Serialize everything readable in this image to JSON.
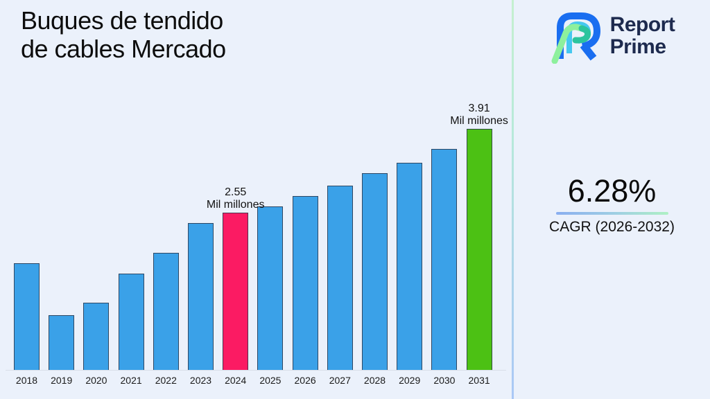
{
  "title": {
    "line1": "Buques de tendido",
    "line2": "de cables Mercado"
  },
  "brand": {
    "name_line1": "Report",
    "name_line2": "Prime",
    "logo_icon": "report-prime-monogram"
  },
  "cagr": {
    "value": "6.28%",
    "label": "CAGR (2026-2032)"
  },
  "chart_data": {
    "type": "bar",
    "title": "Buques de tendido de cables Mercado",
    "xlabel": "",
    "ylabel": "",
    "unit": "Mil millones",
    "ylim": [
      0,
      4.3
    ],
    "grid": false,
    "categories": [
      "2018",
      "2019",
      "2020",
      "2021",
      "2022",
      "2023",
      "2024",
      "2025",
      "2026",
      "2027",
      "2028",
      "2029",
      "2030",
      "2031"
    ],
    "values": [
      1.73,
      0.89,
      1.09,
      1.56,
      1.9,
      2.38,
      2.55,
      2.65,
      2.82,
      2.99,
      3.19,
      3.36,
      3.58,
      3.91
    ],
    "default_color": "#3aa1e8",
    "highlights": {
      "2024": "#fb1b63",
      "2031": "#4cc114"
    },
    "annotations": [
      {
        "year": "2024",
        "line1": "2.55",
        "line2": "Mil millones"
      },
      {
        "year": "2031",
        "line1": "3.91",
        "line2": "Mil millones"
      }
    ]
  },
  "colors": {
    "background": "#ebf1fb",
    "bar_blue": "#3aa1e8",
    "bar_pink": "#fb1b63",
    "bar_green": "#4cc114",
    "brand_navy": "#1d2a4e",
    "divider_top": "#c5f0cf",
    "divider_bottom": "#aac8f6"
  }
}
